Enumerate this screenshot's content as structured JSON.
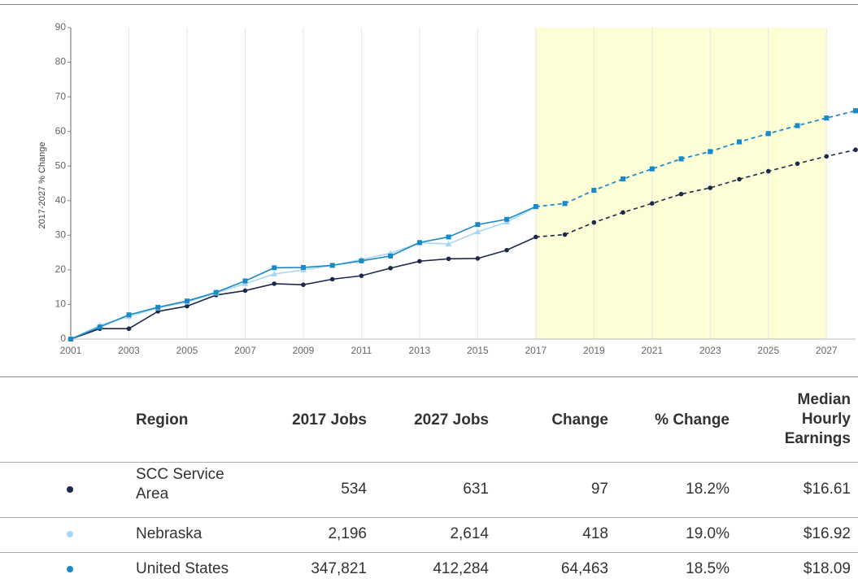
{
  "chart_data": {
    "type": "line",
    "y_label": "2017-2027 % Change",
    "x": [
      2001,
      2002,
      2003,
      2004,
      2005,
      2006,
      2007,
      2008,
      2009,
      2010,
      2011,
      2012,
      2013,
      2014,
      2015,
      2016,
      2017,
      2018,
      2019,
      2020,
      2021,
      2022,
      2023,
      2024,
      2025,
      2026,
      2027,
      2028
    ],
    "series": [
      {
        "name": "SCC Service Area",
        "color": "#1b2a4a",
        "marker": "circle",
        "values": [
          0,
          3,
          3,
          8,
          9.5,
          12.7,
          14,
          16,
          15.7,
          17.3,
          18.3,
          20.5,
          22.5,
          23.2,
          23.3,
          25.7,
          29.5,
          30.2,
          33.7,
          36.6,
          39.2,
          41.9,
          43.7,
          46.2,
          48.5,
          50.7,
          52.8,
          54.7
        ]
      },
      {
        "name": "Nebraska",
        "color": "#a9d6f2",
        "marker": "triangle",
        "values": [
          0,
          4,
          6.5,
          9,
          10.7,
          13.3,
          16,
          18.8,
          20,
          21.3,
          23,
          24.8,
          27.8,
          27.5,
          31,
          33.8,
          38.2,
          39.1,
          42.9,
          46.2,
          49.1,
          52,
          54.1,
          56.9,
          59.3,
          61.6,
          63.8,
          65.9
        ]
      },
      {
        "name": "United States",
        "color": "#1a8ac6",
        "marker": "square",
        "values": [
          0,
          3.5,
          7,
          9.2,
          11,
          13.5,
          16.8,
          20.6,
          20.7,
          21.3,
          22.6,
          24,
          27.9,
          29.5,
          33.1,
          34.6,
          38.3,
          39.2,
          43,
          46.3,
          49.2,
          52.1,
          54.2,
          57,
          59.4,
          61.7,
          63.9,
          66
        ]
      }
    ],
    "xlim": [
      2001,
      2028
    ],
    "xticks": [
      2001,
      2003,
      2005,
      2007,
      2009,
      2011,
      2013,
      2015,
      2017,
      2019,
      2021,
      2023,
      2025,
      2027
    ],
    "ylim": [
      0,
      90
    ],
    "yticks": [
      0,
      10,
      20,
      30,
      40,
      50,
      60,
      70,
      80,
      90
    ],
    "highlight_range": [
      2017,
      2027
    ],
    "highlight_color": "#fdfdd6",
    "grid": true
  },
  "table": {
    "headers": [
      "Region",
      "2017 Jobs",
      "2027 Jobs",
      "Change",
      "% Change",
      "Median Hourly Earnings"
    ],
    "rows": [
      [
        "SCC Service Area",
        "534",
        "631",
        "97",
        "18.2%",
        "$16.61"
      ],
      [
        "Nebraska",
        "2,196",
        "2,614",
        "418",
        "19.0%",
        "$16.92"
      ],
      [
        "United States",
        "347,821",
        "412,284",
        "64,463",
        "18.5%",
        "$18.09"
      ]
    ]
  }
}
